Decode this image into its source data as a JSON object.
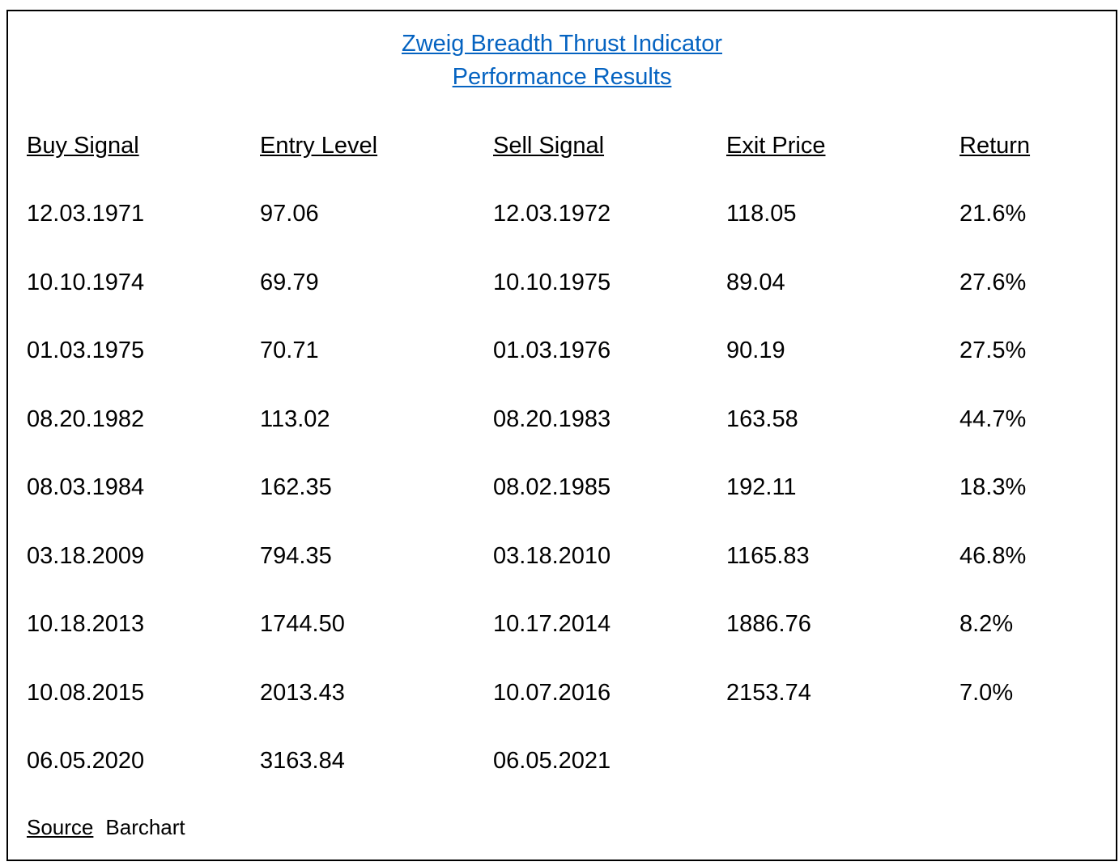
{
  "title": {
    "line1": "Zweig Breadth Thrust Indicator",
    "line2": "Performance Results",
    "color": "#0563c1"
  },
  "table": {
    "headers": [
      "Buy Signal",
      "Entry Level",
      "Sell Signal",
      "Exit Price",
      "Return"
    ],
    "rows": [
      [
        "12.03.1971",
        "97.06",
        "12.03.1972",
        "118.05",
        "21.6%"
      ],
      [
        "10.10.1974",
        "69.79",
        "10.10.1975",
        "89.04",
        "27.6%"
      ],
      [
        "01.03.1975",
        "70.71",
        "01.03.1976",
        "90.19",
        "27.5%"
      ],
      [
        "08.20.1982",
        "113.02",
        "08.20.1983",
        "163.58",
        "44.7%"
      ],
      [
        "08.03.1984",
        "162.35",
        "08.02.1985",
        "192.11",
        "18.3%"
      ],
      [
        "03.18.2009",
        "794.35",
        "03.18.2010",
        "1165.83",
        "46.8%"
      ],
      [
        "10.18.2013",
        "1744.50",
        "10.17.2014",
        "1886.76",
        "8.2%"
      ],
      [
        "10.08.2015",
        "2013.43",
        "10.07.2016",
        "2153.74",
        "7.0%"
      ],
      [
        "06.05.2020",
        "3163.84",
        "06.05.2021",
        "",
        ""
      ]
    ]
  },
  "source": {
    "label": "Source",
    "value": "Barchart"
  }
}
